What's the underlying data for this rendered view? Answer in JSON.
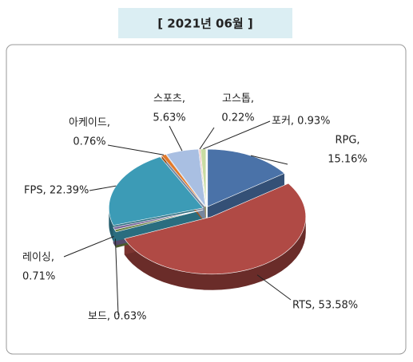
{
  "chart_data": {
    "type": "pie3d",
    "title": "[ 2021년 06월 ]",
    "values": [
      15.16,
      53.58,
      0.63,
      0.71,
      22.39,
      0.76,
      5.63,
      0.22,
      0.93
    ],
    "value_labels": [
      [
        "RPG,",
        "15.16%"
      ],
      [
        "RTS, 53.58%"
      ],
      [
        "보드, 0.63%"
      ],
      [
        "레이싱,",
        "0.71%"
      ],
      [
        "FPS, 22.39%"
      ],
      [
        "아케이드,",
        "0.76%"
      ],
      [
        "스포츠,",
        "5.63%"
      ],
      [
        "고스톱,",
        "0.22%"
      ],
      [
        "포커, 0.93%"
      ]
    ],
    "colors": [
      "#4a72a8",
      "#b04a45",
      "#6b8242",
      "#7b6a9c",
      "#3c9bb6",
      "#e2792a",
      "#a9bfe2",
      "#eeb0ae",
      "#c9dca2"
    ]
  }
}
